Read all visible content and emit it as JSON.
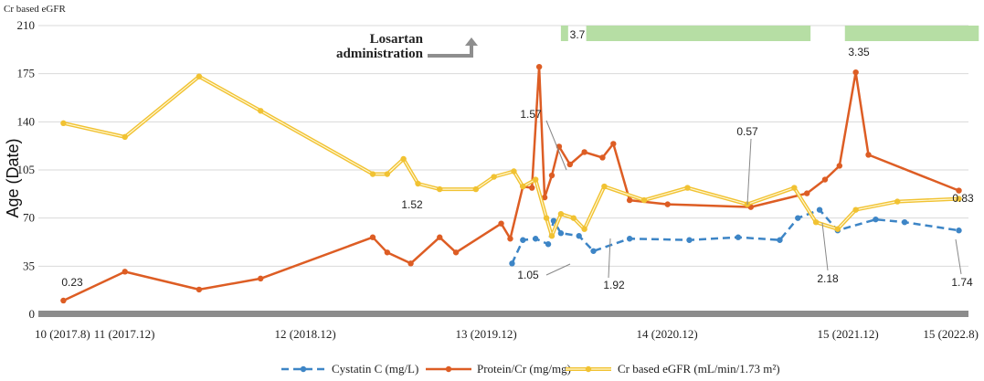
{
  "chart_data": {
    "type": "line",
    "title": "",
    "top_left_label": "Cr based eGFR",
    "ylabel": "Age (Date)",
    "xlabel": "",
    "ylim": [
      0,
      210
    ],
    "yticks": [
      0,
      35,
      70,
      105,
      140,
      175,
      210
    ],
    "x_range": [
      2017.583,
      2022.583
    ],
    "x_ticks": [
      {
        "x": 2017.583,
        "label": "10 (2017.8)"
      },
      {
        "x": 2017.917,
        "label": "11 (2017.12)"
      },
      {
        "x": 2018.917,
        "label": "12 (2018.12)"
      },
      {
        "x": 2019.917,
        "label": "13 (2019.12)"
      },
      {
        "x": 2020.917,
        "label": "14 (2020.12)"
      },
      {
        "x": 2021.917,
        "label": "15 (2021.12)"
      },
      {
        "x": 2022.583,
        "label": "15 (2022.8)"
      }
    ],
    "series": [
      {
        "name": "Cystatin C (mg/L)",
        "color": "#3d85c6",
        "style": "dashed",
        "x": [
          2020.06,
          2020.12,
          2020.19,
          2020.26,
          2020.29,
          2020.33,
          2020.43,
          2020.51,
          2020.71,
          2021.04,
          2021.31,
          2021.54,
          2021.64,
          2021.76,
          2021.86,
          2022.07,
          2022.23,
          2022.53
        ],
        "values": [
          37,
          54,
          55,
          51,
          68,
          59,
          57,
          46,
          55,
          54,
          56,
          54,
          70,
          76,
          61,
          69,
          67,
          61
        ]
      },
      {
        "name": "Protein/Cr (mg/mg)",
        "color": "#dd5d24",
        "style": "solid",
        "x": [
          2017.58,
          2017.92,
          2018.33,
          2018.67,
          2019.29,
          2019.37,
          2019.5,
          2019.66,
          2019.75,
          2020.0,
          2020.05,
          2020.12,
          2020.17,
          2020.21,
          2020.24,
          2020.28,
          2020.32,
          2020.38,
          2020.46,
          2020.56,
          2020.62,
          2020.71,
          2020.92,
          2021.38,
          2021.69,
          2021.79,
          2021.87,
          2021.96,
          2022.03,
          2022.53
        ],
        "values": [
          10,
          31,
          18,
          26,
          56,
          45,
          37,
          56,
          45,
          66,
          55,
          93,
          92,
          180,
          85,
          101,
          122,
          109,
          118,
          114,
          124,
          83,
          80,
          78,
          88,
          98,
          108,
          176,
          116,
          90
        ]
      },
      {
        "name": "Cr based eGFR (mL/min/1.73 m²)",
        "color": "#f1c232",
        "style": "double",
        "x": [
          2017.58,
          2017.92,
          2018.33,
          2018.67,
          2019.29,
          2019.37,
          2019.46,
          2019.54,
          2019.66,
          2019.86,
          2019.96,
          2020.07,
          2020.12,
          2020.19,
          2020.25,
          2020.28,
          2020.33,
          2020.4,
          2020.46,
          2020.57,
          2020.79,
          2021.03,
          2021.36,
          2021.62,
          2021.74,
          2021.86,
          2021.96,
          2022.19,
          2022.53
        ],
        "values": [
          139,
          129,
          173,
          148,
          102,
          102,
          113,
          95,
          91,
          91,
          100,
          104,
          93,
          98,
          70,
          57,
          73,
          70,
          62,
          93,
          83,
          92,
          80,
          92,
          67,
          62,
          76,
          82,
          84
        ]
      }
    ],
    "annotations": [
      {
        "text": "0.23"
      },
      {
        "text": "1.52"
      },
      {
        "text": "1.57"
      },
      {
        "text": "1.05"
      },
      {
        "text": "1.92"
      },
      {
        "text": "3.7"
      },
      {
        "text": "0.57"
      },
      {
        "text": "2.18"
      },
      {
        "text": "3.35"
      },
      {
        "text": "0.83"
      },
      {
        "text": "1.74"
      }
    ],
    "event_label": "Losartan administration",
    "event_label_lines": [
      "Losartan",
      "administration"
    ],
    "treatment_bars": [
      {
        "start": 2020.33,
        "end": 2020.37
      },
      {
        "start": 2020.47,
        "end": 2021.71
      },
      {
        "start": 2021.9,
        "end": 2022.64
      }
    ]
  }
}
